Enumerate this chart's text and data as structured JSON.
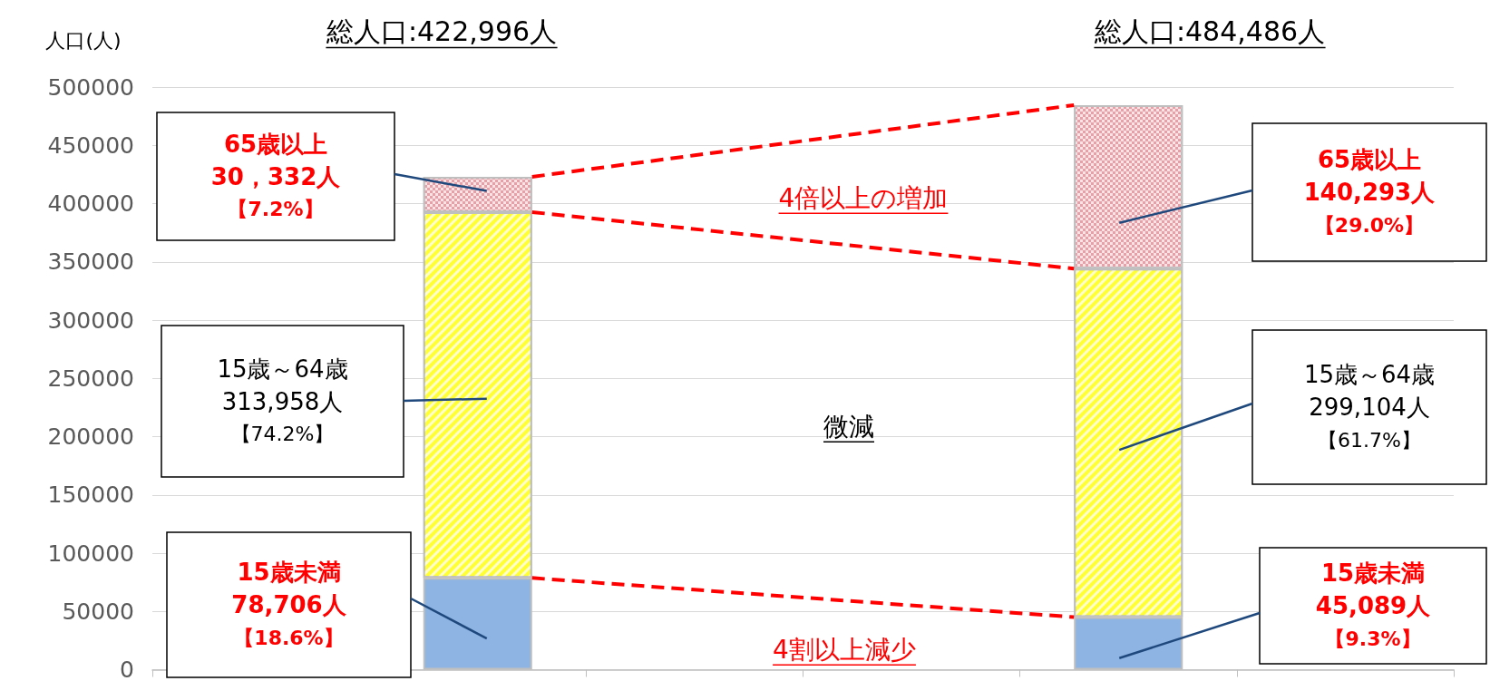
{
  "chart_data": {
    "type": "bar",
    "stacked": true,
    "ylabel": "人口(人)",
    "categories": [
      null,
      null,
      null,
      null,
      null,
      null
    ],
    "series": [
      {
        "name": "15歳未満",
        "color": "#8eb4e3",
        "values": [
          null,
          78706,
          null,
          null,
          45089,
          null
        ]
      },
      {
        "name": "15歳～64歳",
        "color": "#ffff33",
        "values": [
          null,
          313958,
          null,
          null,
          299104,
          null
        ]
      },
      {
        "name": "65歳以上",
        "color": "#e8a0a8",
        "values": [
          null,
          30332,
          null,
          null,
          140293,
          null
        ]
      }
    ],
    "annotations": [
      "総人口:422,996人",
      "総人口:484,486人",
      "30，332人",
      "【7.2%】",
      "140,293人",
      "【29.0%】",
      "4倍以上の増加",
      "313,958人",
      "【74.2%】",
      "299,104人",
      "【61.7%】",
      "微減",
      "78,706人",
      "【18.6%】",
      "45,089人",
      "【9.3%】",
      "4割以上減少"
    ],
    "ylim": [
      0,
      500000
    ],
    "yticks": [
      0,
      50000,
      100000,
      150000,
      200000,
      250000,
      300000,
      350000,
      400000,
      450000,
      500000
    ],
    "grid": "y",
    "legend": false
  }
}
